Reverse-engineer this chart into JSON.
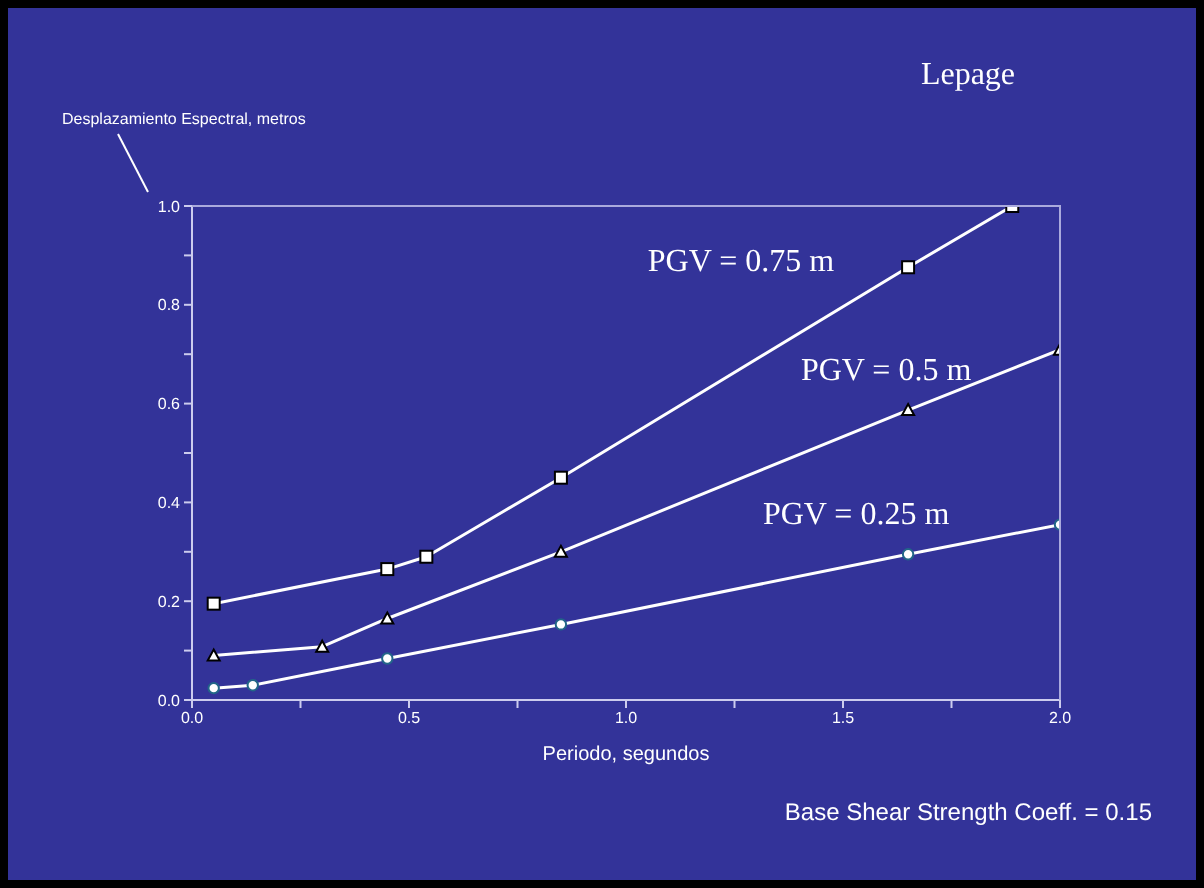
{
  "chart_data": {
    "type": "line",
    "title": "Lepage",
    "xlabel": "Periodo, segundos",
    "ylabel": "Desplazamiento Espectral, metros",
    "annotations": [
      "Base Shear Strength Coeff. = 0.15"
    ],
    "series": [
      {
        "name": "PGV = 0.75 m",
        "color": "#ffffff",
        "marker": "square",
        "x": [
          0.05,
          0.45,
          0.54,
          0.85,
          1.65,
          1.89
        ],
        "values": [
          0.195,
          0.265,
          0.29,
          0.45,
          0.876,
          1.0
        ]
      },
      {
        "name": "PGV = 0.5 m",
        "color": "#ffffff",
        "marker": "triangle",
        "x": [
          0.05,
          0.3,
          0.45,
          0.85,
          1.65,
          2.0
        ],
        "values": [
          0.09,
          0.108,
          0.165,
          0.3,
          0.587,
          0.709
        ]
      },
      {
        "name": "PGV = 0.25 m",
        "color": "#ffffff",
        "marker": "circle",
        "x": [
          0.05,
          0.14,
          0.45,
          0.85,
          1.65,
          2.0
        ],
        "values": [
          0.024,
          0.03,
          0.084,
          0.153,
          0.295,
          0.355
        ]
      }
    ],
    "xlim": [
      0,
      2
    ],
    "ylim": [
      0,
      1
    ],
    "xticks": [
      {
        "value": 0,
        "label": "0.0"
      },
      {
        "value": 0.25,
        "label": null
      },
      0.5,
      {
        "value": 0.75,
        "label": null
      },
      {
        "value": 1,
        "label": "1.0"
      },
      {
        "value": 1.25,
        "label": null
      },
      1.5,
      {
        "value": 1.75,
        "label": null
      },
      {
        "value": 2,
        "label": "2.0"
      }
    ],
    "yticks": [
      {
        "value": 0,
        "label": "0.0"
      },
      {
        "value": 0.1,
        "label": null
      },
      0.2,
      {
        "value": 0.3,
        "label": null
      },
      0.4,
      {
        "value": 0.5,
        "label": null
      },
      0.6,
      {
        "value": 0.7,
        "label": null
      },
      0.8,
      {
        "value": 0.9,
        "label": null
      },
      {
        "value": 1,
        "label": "1.0"
      }
    ],
    "grid": false,
    "legend": false,
    "line_style": "solid"
  }
}
